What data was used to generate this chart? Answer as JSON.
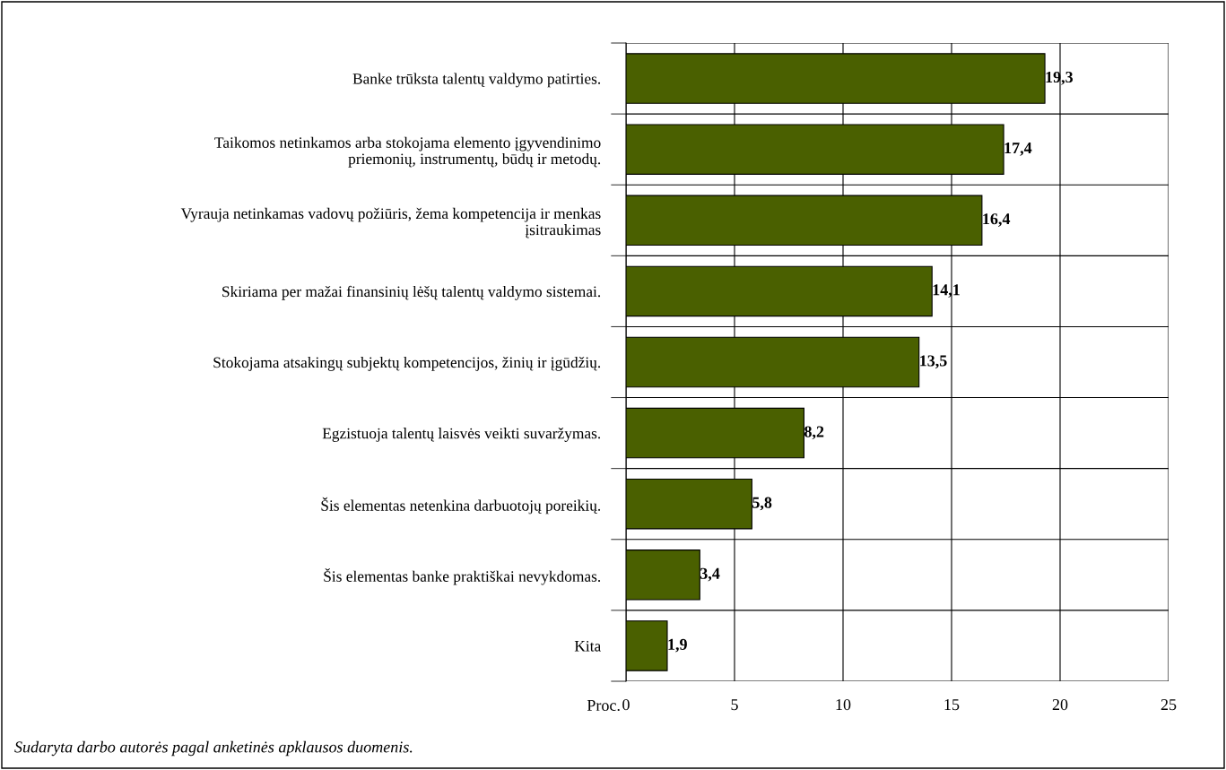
{
  "chart_data": {
    "type": "bar",
    "orientation": "horizontal",
    "categories": [
      "Banke trūksta talentų valdymo patirties.",
      "Taikomos netinkamos arba stokojama elemento įgyvendinimo\npriemonių, instrumentų, būdų ir metodų.",
      "Vyrauja netinkamas vadovų požiūris, žema kompetencija ir menkas\nįsitraukimas",
      "Skiriama per mažai finansinių lėšų talentų valdymo sistemai.",
      "Stokojama atsakingų subjektų kompetencijos, žinių ir įgūdžių.",
      "Egzistuoja talentų laisvės veikti suvaržymas.",
      "Šis elementas netenkina darbuotojų poreikių.",
      "Šis elementas banke praktiškai nevykdomas.",
      "Kita"
    ],
    "values": [
      19.3,
      17.4,
      16.4,
      14.1,
      13.5,
      8.2,
      5.8,
      3.4,
      1.9
    ],
    "value_labels": [
      "19,3",
      "17,4",
      "16,4",
      "14,1",
      "13,5",
      "8,2",
      "5,8",
      "3,4",
      "1,9"
    ],
    "color": "#4a6000",
    "xlabel": "Proc.",
    "xlim": [
      0,
      25
    ],
    "xticks": [
      0,
      5,
      10,
      15,
      20,
      25
    ],
    "grid": true,
    "annotations": [
      "Sudaryta darbo autorės pagal anketinės apklausos duomenis."
    ]
  }
}
